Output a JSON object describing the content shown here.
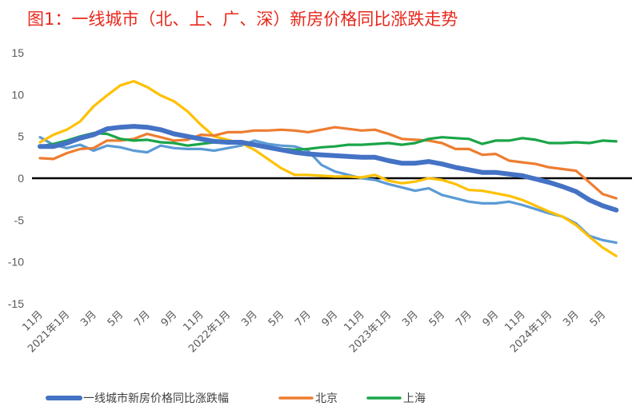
{
  "title": "图1：一线城市（北、上、广、深）新房价格同比涨跌走势",
  "colors": {
    "composite": "#4472c4",
    "beijing": "#ed7d31",
    "shanghai": "#1aa548",
    "guangzhou": "#ffc000",
    "shenzhen": "#5b9bd5",
    "zero_line": "#000000",
    "title": "#e8281c"
  },
  "chart_data": {
    "type": "line",
    "title": "图1：一线城市（北、上、广、深）新房价格同比涨跌走势",
    "xlabel": "",
    "ylabel": "",
    "ylim": [
      -15,
      15
    ],
    "yticks": [
      15,
      10,
      5,
      0,
      -5,
      -10,
      -15
    ],
    "grid": false,
    "legend_position": "bottom",
    "x": [
      "2020-11",
      "2020-12",
      "2021-01",
      "2021-02",
      "2021-03",
      "2021-04",
      "2021-05",
      "2021-06",
      "2021-07",
      "2021-08",
      "2021-09",
      "2021-10",
      "2021-11",
      "2021-12",
      "2022-01",
      "2022-02",
      "2022-03",
      "2022-04",
      "2022-05",
      "2022-06",
      "2022-07",
      "2022-08",
      "2022-09",
      "2022-10",
      "2022-11",
      "2022-12",
      "2023-01",
      "2023-02",
      "2023-03",
      "2023-04",
      "2023-05",
      "2023-06",
      "2023-07",
      "2023-08",
      "2023-09",
      "2023-10",
      "2023-11",
      "2023-12",
      "2024-01",
      "2024-02",
      "2024-03",
      "2024-04",
      "2024-05",
      "2024-06"
    ],
    "xtick_labels": [
      "11月",
      "2021年1月",
      "3月",
      "5月",
      "7月",
      "9月",
      "11月",
      "2022年1月",
      "3月",
      "5月",
      "7月",
      "9月",
      "11月",
      "2023年1月",
      "3月",
      "5月",
      "7月",
      "9月",
      "11月",
      "2024年1月",
      "3月",
      "5月"
    ],
    "series": [
      {
        "key": "composite",
        "name": "一线城市新房价格同比涨跌幅",
        "in_legend": true,
        "values": [
          3.8,
          3.8,
          4.2,
          4.8,
          5.2,
          5.9,
          6.1,
          6.2,
          6.1,
          5.8,
          5.3,
          5.0,
          4.7,
          4.4,
          4.3,
          4.3,
          4.0,
          3.7,
          3.4,
          3.1,
          2.9,
          2.8,
          2.7,
          2.6,
          2.5,
          2.5,
          2.1,
          1.8,
          1.8,
          2.0,
          1.7,
          1.3,
          1.0,
          0.7,
          0.7,
          0.5,
          0.3,
          -0.1,
          -0.5,
          -1.0,
          -1.6,
          -2.6,
          -3.3,
          -3.8
        ]
      },
      {
        "key": "beijing",
        "name": "北京",
        "in_legend": true,
        "values": [
          2.4,
          2.3,
          3.0,
          3.5,
          3.6,
          4.5,
          4.5,
          4.7,
          5.3,
          4.9,
          4.5,
          4.6,
          5.2,
          5.1,
          5.5,
          5.5,
          5.7,
          5.7,
          5.8,
          5.7,
          5.5,
          5.8,
          6.1,
          5.9,
          5.7,
          5.8,
          5.3,
          4.7,
          4.6,
          4.5,
          4.2,
          3.5,
          3.5,
          2.8,
          2.9,
          2.1,
          1.9,
          1.7,
          1.3,
          1.1,
          0.9,
          -0.5,
          -1.9,
          -2.4
        ]
      },
      {
        "key": "shanghai",
        "name": "上海",
        "in_legend": true,
        "values": [
          3.8,
          4.1,
          4.5,
          5.0,
          5.4,
          5.3,
          4.7,
          4.5,
          4.6,
          4.3,
          4.2,
          3.9,
          4.1,
          4.3,
          4.4,
          4.4,
          4.0,
          3.7,
          3.5,
          3.4,
          3.5,
          3.7,
          3.8,
          4.0,
          4.0,
          4.1,
          4.2,
          4.0,
          4.2,
          4.7,
          4.9,
          4.8,
          4.7,
          4.1,
          4.5,
          4.5,
          4.8,
          4.6,
          4.2,
          4.2,
          4.3,
          4.2,
          4.5,
          4.4
        ]
      },
      {
        "key": "guangzhou",
        "name": "",
        "in_legend": false,
        "values": [
          4.3,
          5.2,
          5.8,
          6.8,
          8.6,
          9.9,
          11.1,
          11.6,
          10.9,
          9.9,
          9.2,
          8.0,
          6.4,
          5.0,
          4.6,
          4.2,
          3.4,
          2.3,
          1.2,
          0.4,
          0.4,
          0.3,
          0.2,
          0.2,
          0.1,
          0.4,
          -0.3,
          -0.6,
          -0.4,
          0.0,
          -0.2,
          -0.7,
          -1.4,
          -1.5,
          -1.8,
          -2.1,
          -2.6,
          -3.3,
          -4.0,
          -4.6,
          -5.6,
          -7.0,
          -8.3,
          -9.3
        ]
      },
      {
        "key": "shenzhen",
        "name": "",
        "in_legend": false,
        "values": [
          4.9,
          4.0,
          3.6,
          4.0,
          3.3,
          3.9,
          3.7,
          3.3,
          3.1,
          3.9,
          3.6,
          3.5,
          3.5,
          3.3,
          3.6,
          3.9,
          4.5,
          4.1,
          3.9,
          3.8,
          3.3,
          1.6,
          0.8,
          0.4,
          0.0,
          -0.2,
          -0.7,
          -1.1,
          -1.5,
          -1.2,
          -2.0,
          -2.4,
          -2.8,
          -3.0,
          -3.0,
          -2.8,
          -3.2,
          -3.7,
          -4.2,
          -4.6,
          -5.4,
          -6.9,
          -7.4,
          -7.7
        ]
      }
    ]
  }
}
